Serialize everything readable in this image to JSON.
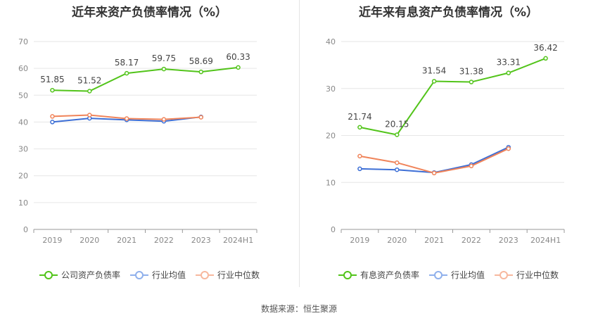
{
  "chart_data": [
    {
      "type": "line",
      "title": "近年来资产负债率情况（%）",
      "categories": [
        "2019",
        "2020",
        "2021",
        "2022",
        "2023",
        "2024H1"
      ],
      "ylim": [
        0,
        70
      ],
      "yticks": [
        0,
        10,
        20,
        30,
        40,
        50,
        60,
        70
      ],
      "series": [
        {
          "name": "公司资产负债率",
          "color": "#52c41a",
          "values": [
            51.85,
            51.52,
            58.17,
            59.75,
            58.69,
            60.33
          ],
          "labels": [
            "51.85",
            "51.52",
            "58.17",
            "59.75",
            "58.69",
            "60.33"
          ]
        },
        {
          "name": "行业均值",
          "color": "#3d6fd6",
          "values": [
            40.0,
            41.4,
            40.8,
            40.3,
            41.9,
            null
          ]
        },
        {
          "name": "行业中位数",
          "color": "#f0845a",
          "values": [
            42.1,
            42.6,
            41.3,
            41.0,
            41.8,
            null
          ]
        }
      ],
      "legend": [
        {
          "label": "公司资产负债率",
          "color": "#52c41a"
        },
        {
          "label": "行业均值",
          "color": "#8fb0ec"
        },
        {
          "label": "行业中位数",
          "color": "#f7b89e"
        }
      ]
    },
    {
      "type": "line",
      "title": "近年来有息资产负债率情况（%）",
      "categories": [
        "2019",
        "2020",
        "2021",
        "2022",
        "2023",
        "2024H1"
      ],
      "ylim": [
        0,
        40
      ],
      "yticks": [
        0,
        10,
        20,
        30,
        40
      ],
      "series": [
        {
          "name": "有息资产负债率",
          "color": "#52c41a",
          "values": [
            21.74,
            20.15,
            31.54,
            31.38,
            33.31,
            36.42
          ],
          "labels": [
            "21.74",
            "20.15",
            "31.54",
            "31.38",
            "33.31",
            "36.42"
          ]
        },
        {
          "name": "行业均值",
          "color": "#3d6fd6",
          "values": [
            12.9,
            12.7,
            12.1,
            13.8,
            17.5,
            null
          ]
        },
        {
          "name": "行业中位数",
          "color": "#f0845a",
          "values": [
            15.6,
            14.2,
            12.0,
            13.5,
            17.2,
            null
          ]
        }
      ],
      "legend": [
        {
          "label": "有息资产负债率",
          "color": "#52c41a"
        },
        {
          "label": "行业均值",
          "color": "#8fb0ec"
        },
        {
          "label": "行业中位数",
          "color": "#f7b89e"
        }
      ]
    }
  ],
  "footer": {
    "source": "数据来源：恒生聚源"
  }
}
